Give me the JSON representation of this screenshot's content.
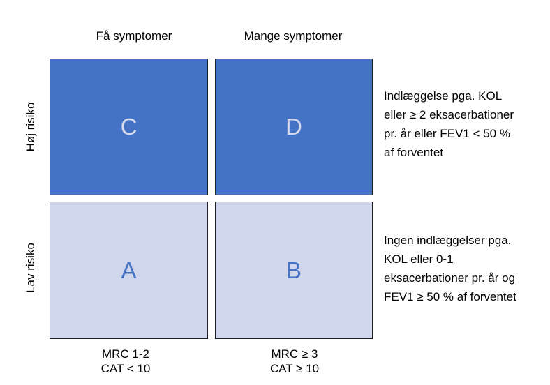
{
  "columns": {
    "few_symptoms": "Få symptomer",
    "many_symptoms": "Mange symptomer"
  },
  "rows": {
    "high_risk": "Høj risiko",
    "low_risk": "Lav risiko"
  },
  "cells": {
    "top_left": "C",
    "top_right": "D",
    "bottom_left": "A",
    "bottom_right": "B"
  },
  "criteria": {
    "high_risk": [
      "Indlæggelse pga. KOL",
      "eller ≥ 2 eksacerbationer",
      "pr. år eller FEV1 < 50 %",
      "af forventet"
    ],
    "low_risk": [
      "Ingen indlæggelser pga.",
      "KOL eller 0-1",
      "eksacerbationer pr. år og",
      "FEV1 ≥ 50 % af forventet"
    ]
  },
  "thresholds": {
    "few_symptoms": [
      "MRC 1-2",
      "CAT < 10"
    ],
    "many_symptoms": [
      "MRC ≥ 3",
      "CAT ≥ 10"
    ]
  },
  "colors": {
    "high_risk_fill": "#4472c4",
    "low_risk_fill": "#d0d6ec"
  }
}
